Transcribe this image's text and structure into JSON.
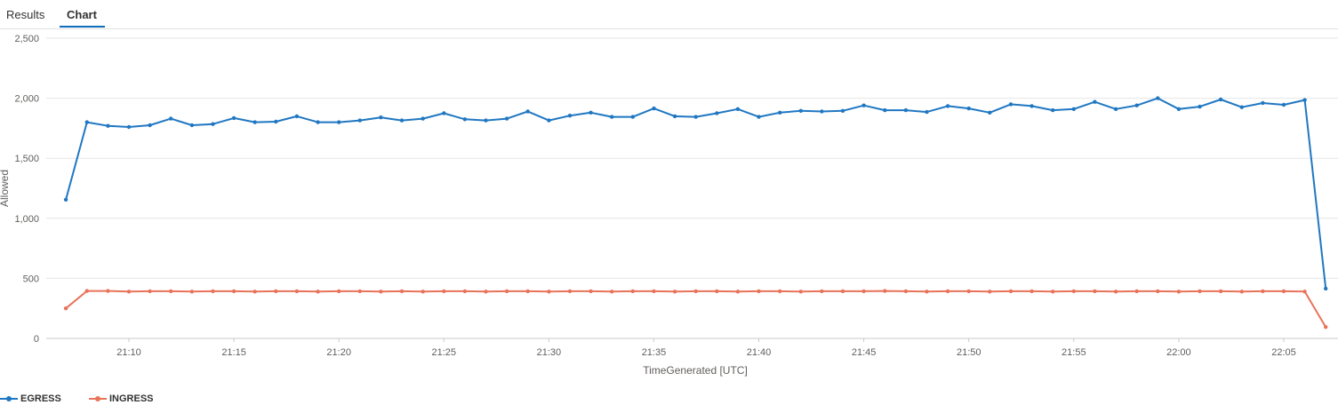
{
  "tabs": [
    {
      "label": "Results",
      "active": false
    },
    {
      "label": "Chart",
      "active": true
    }
  ],
  "chart_data": {
    "type": "line",
    "title": "",
    "xlabel": "TimeGenerated [UTC]",
    "ylabel": "Allowed",
    "ylim": [
      0,
      2500
    ],
    "yticks": [
      0,
      500,
      1000,
      1500,
      2000,
      2500
    ],
    "ytick_labels": [
      "0",
      "500",
      "1,000",
      "1,500",
      "2,000",
      "2,500"
    ],
    "xtick_labels": [
      "21:10",
      "21:15",
      "21:20",
      "21:25",
      "21:30",
      "21:35",
      "21:40",
      "21:45",
      "21:50",
      "21:55",
      "22:00",
      "22:05"
    ],
    "grid": true,
    "legend_position": "bottom-left",
    "x": [
      "21:07",
      "21:08",
      "21:09",
      "21:10",
      "21:11",
      "21:12",
      "21:13",
      "21:14",
      "21:15",
      "21:16",
      "21:17",
      "21:18",
      "21:19",
      "21:20",
      "21:21",
      "21:22",
      "21:23",
      "21:24",
      "21:25",
      "21:26",
      "21:27",
      "21:28",
      "21:29",
      "21:30",
      "21:31",
      "21:32",
      "21:33",
      "21:34",
      "21:35",
      "21:36",
      "21:37",
      "21:38",
      "21:39",
      "21:40",
      "21:41",
      "21:42",
      "21:43",
      "21:44",
      "21:45",
      "21:46",
      "21:47",
      "21:48",
      "21:49",
      "21:50",
      "21:51",
      "21:52",
      "21:53",
      "21:54",
      "21:55",
      "21:56",
      "21:57",
      "21:58",
      "21:59",
      "22:00",
      "22:01",
      "22:02",
      "22:03",
      "22:04",
      "22:05",
      "22:06",
      "22:07"
    ],
    "series": [
      {
        "name": "EGRESS",
        "color": "#1f77c2",
        "values": [
          1155,
          1800,
          1770,
          1760,
          1775,
          1830,
          1775,
          1785,
          1835,
          1800,
          1805,
          1850,
          1800,
          1800,
          1815,
          1840,
          1815,
          1830,
          1875,
          1825,
          1815,
          1830,
          1890,
          1815,
          1855,
          1880,
          1845,
          1845,
          1915,
          1850,
          1845,
          1875,
          1910,
          1845,
          1880,
          1895,
          1890,
          1895,
          1940,
          1900,
          1900,
          1885,
          1935,
          1915,
          1880,
          1950,
          1935,
          1900,
          1910,
          1970,
          1910,
          1940,
          2000,
          1910,
          1930,
          1990,
          1925,
          1960,
          1945,
          1985,
          415
        ]
      },
      {
        "name": "INGRESS",
        "color": "#e8735a",
        "values": [
          250,
          395,
          395,
          390,
          393,
          393,
          390,
          393,
          393,
          390,
          393,
          393,
          390,
          393,
          393,
          390,
          393,
          390,
          393,
          393,
          390,
          393,
          393,
          390,
          393,
          393,
          390,
          393,
          393,
          390,
          393,
          393,
          390,
          393,
          393,
          390,
          393,
          393,
          393,
          395,
          393,
          390,
          393,
          393,
          390,
          393,
          393,
          390,
          393,
          393,
          390,
          393,
          393,
          390,
          393,
          393,
          390,
          393,
          393,
          390,
          95
        ]
      }
    ]
  }
}
